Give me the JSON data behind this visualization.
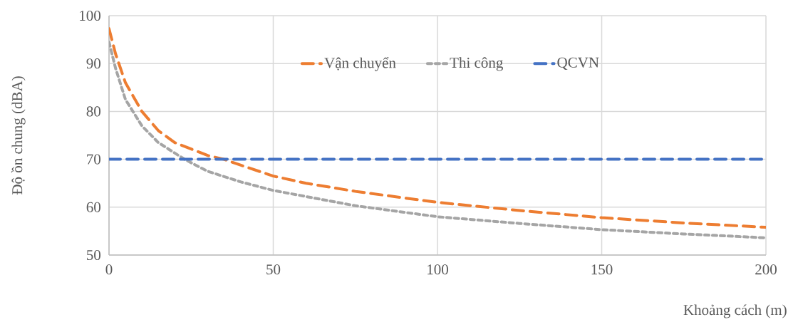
{
  "chart_data": {
    "type": "line",
    "xlabel": "Khoảng cách (m)",
    "ylabel": "Độ ồn chung (dBA)",
    "xlim": [
      0,
      200
    ],
    "xticks": [
      0,
      50,
      100,
      150,
      200
    ],
    "ylim": [
      50,
      100
    ],
    "yticks": [
      50,
      60,
      70,
      80,
      90,
      100
    ],
    "grid": true,
    "legend": "top",
    "marker": "none",
    "series": [
      {
        "name": "Vận chuyển",
        "color": "#ed7d31",
        "line_style": "dashed",
        "x": [
          0,
          2,
          5,
          10,
          15,
          20,
          30,
          35,
          40,
          50,
          60,
          75,
          100,
          125,
          150,
          175,
          200
        ],
        "values": [
          97.3,
          92,
          86,
          80,
          76,
          73.5,
          70.8,
          70,
          68.8,
          66.5,
          65,
          63.3,
          61,
          59.3,
          57.8,
          56.7,
          55.8
        ]
      },
      {
        "name": "Thi công",
        "color": "#a5a5a5",
        "line_style": "dotted",
        "x": [
          0,
          2,
          5,
          10,
          15,
          23,
          30,
          40,
          50,
          75,
          100,
          125,
          150,
          175,
          200
        ],
        "values": [
          94.5,
          89,
          82.5,
          77,
          73.5,
          70,
          67.5,
          65.3,
          63.5,
          60.3,
          58,
          56.6,
          55.3,
          54.4,
          53.6
        ]
      },
      {
        "name": "QCVN",
        "color": "#4472c4",
        "line_style": "dashed",
        "x": [
          0,
          200
        ],
        "values": [
          70,
          70
        ]
      }
    ]
  }
}
